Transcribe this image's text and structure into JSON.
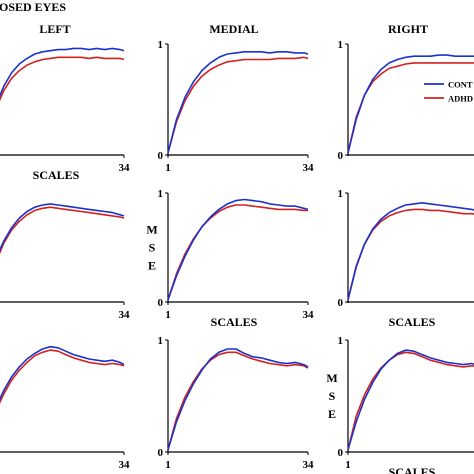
{
  "header": {
    "condition_label": "OSED EYES"
  },
  "columns": [
    {
      "title": "LEFT"
    },
    {
      "title": "MEDIAL"
    },
    {
      "title": "RIGHT"
    }
  ],
  "colors": {
    "control": "#1a33cc",
    "adhd": "#d42020",
    "axis": "#000000"
  },
  "chart_data": {
    "type": "line",
    "x_range": [
      1,
      34
    ],
    "y_range": [
      0,
      1
    ],
    "x_tick_labels": [
      "1",
      "34"
    ],
    "y_tick_labels": [
      "0",
      "1"
    ],
    "legend_entries": [
      "CONT",
      "ADHD"
    ],
    "panels": [
      {
        "row": 0,
        "col": 0,
        "xlabel": "SCALES",
        "ylabel": "",
        "tick_first": "",
        "tick_last": "34",
        "series": [
          {
            "name": "CONT",
            "x": [
              1,
              3,
              5,
              7,
              9,
              11,
              13,
              15,
              17,
              19,
              21,
              23,
              25,
              27,
              29,
              31,
              33,
              34
            ],
            "y": [
              0.45,
              0.62,
              0.74,
              0.82,
              0.87,
              0.91,
              0.93,
              0.94,
              0.95,
              0.95,
              0.96,
              0.96,
              0.95,
              0.96,
              0.95,
              0.96,
              0.95,
              0.94
            ]
          },
          {
            "name": "ADHD",
            "x": [
              1,
              3,
              5,
              7,
              9,
              11,
              13,
              15,
              17,
              19,
              21,
              23,
              25,
              27,
              29,
              31,
              33,
              34
            ],
            "y": [
              0.42,
              0.58,
              0.69,
              0.76,
              0.81,
              0.84,
              0.86,
              0.87,
              0.88,
              0.88,
              0.88,
              0.88,
              0.87,
              0.88,
              0.87,
              0.87,
              0.87,
              0.86
            ]
          }
        ]
      },
      {
        "row": 0,
        "col": 1,
        "xlabel": "",
        "ylabel": "",
        "tick_first": "1",
        "tick_last": "34",
        "series": [
          {
            "name": "CONT",
            "x": [
              1,
              3,
              5,
              7,
              9,
              11,
              13,
              15,
              17,
              19,
              21,
              23,
              25,
              27,
              29,
              31,
              33,
              34
            ],
            "y": [
              0.02,
              0.32,
              0.52,
              0.66,
              0.76,
              0.83,
              0.88,
              0.91,
              0.92,
              0.93,
              0.93,
              0.93,
              0.92,
              0.93,
              0.93,
              0.92,
              0.92,
              0.91
            ]
          },
          {
            "name": "ADHD",
            "x": [
              1,
              3,
              5,
              7,
              9,
              11,
              13,
              15,
              17,
              19,
              21,
              23,
              25,
              27,
              29,
              31,
              33,
              34
            ],
            "y": [
              0.02,
              0.3,
              0.49,
              0.62,
              0.71,
              0.77,
              0.81,
              0.84,
              0.85,
              0.86,
              0.86,
              0.86,
              0.86,
              0.87,
              0.87,
              0.87,
              0.88,
              0.87
            ]
          }
        ]
      },
      {
        "row": 0,
        "col": 2,
        "xlabel": "",
        "ylabel": "",
        "tick_first": "",
        "tick_last": "",
        "series": [
          {
            "name": "CONT",
            "x": [
              1,
              3,
              5,
              7,
              9,
              11,
              13,
              15,
              17,
              19,
              21,
              23,
              25,
              27,
              29,
              31,
              33,
              34
            ],
            "y": [
              0.02,
              0.32,
              0.54,
              0.68,
              0.77,
              0.83,
              0.86,
              0.88,
              0.89,
              0.89,
              0.89,
              0.9,
              0.9,
              0.89,
              0.89,
              0.89,
              0.89,
              0.89
            ]
          },
          {
            "name": "ADHD",
            "x": [
              1,
              3,
              5,
              7,
              9,
              11,
              13,
              15,
              17,
              19,
              21,
              23,
              25,
              27,
              29,
              31,
              33,
              34
            ],
            "y": [
              0.02,
              0.34,
              0.54,
              0.66,
              0.73,
              0.78,
              0.8,
              0.82,
              0.83,
              0.83,
              0.83,
              0.83,
              0.83,
              0.83,
              0.83,
              0.83,
              0.83,
              0.83
            ]
          }
        ]
      },
      {
        "row": 1,
        "col": 0,
        "xlabel": "",
        "ylabel": "",
        "tick_first": "",
        "tick_last": "34",
        "series": [
          {
            "name": "CONT",
            "x": [
              1,
              3,
              5,
              7,
              9,
              11,
              13,
              15,
              17,
              19,
              21,
              23,
              25,
              27,
              29,
              31,
              33,
              34
            ],
            "y": [
              0.4,
              0.56,
              0.68,
              0.77,
              0.83,
              0.87,
              0.89,
              0.9,
              0.89,
              0.88,
              0.87,
              0.86,
              0.85,
              0.84,
              0.83,
              0.82,
              0.8,
              0.79
            ]
          },
          {
            "name": "ADHD",
            "x": [
              1,
              3,
              5,
              7,
              9,
              11,
              13,
              15,
              17,
              19,
              21,
              23,
              25,
              27,
              29,
              31,
              33,
              34
            ],
            "y": [
              0.37,
              0.54,
              0.66,
              0.74,
              0.8,
              0.84,
              0.86,
              0.87,
              0.86,
              0.85,
              0.84,
              0.83,
              0.82,
              0.81,
              0.8,
              0.79,
              0.78,
              0.77
            ]
          }
        ]
      },
      {
        "row": 1,
        "col": 1,
        "xlabel": "SCALES",
        "ylabel": "M S E",
        "tick_first": "1",
        "tick_last": "34",
        "series": [
          {
            "name": "CONT",
            "x": [
              1,
              3,
              5,
              7,
              9,
              11,
              13,
              15,
              17,
              19,
              21,
              23,
              25,
              27,
              29,
              31,
              33,
              34
            ],
            "y": [
              0.02,
              0.24,
              0.42,
              0.57,
              0.69,
              0.78,
              0.85,
              0.9,
              0.93,
              0.94,
              0.93,
              0.92,
              0.9,
              0.89,
              0.88,
              0.88,
              0.86,
              0.85
            ]
          },
          {
            "name": "ADHD",
            "x": [
              1,
              3,
              5,
              7,
              9,
              11,
              13,
              15,
              17,
              19,
              21,
              23,
              25,
              27,
              29,
              31,
              33,
              34
            ],
            "y": [
              0.02,
              0.26,
              0.44,
              0.58,
              0.69,
              0.77,
              0.83,
              0.87,
              0.89,
              0.89,
              0.88,
              0.87,
              0.86,
              0.85,
              0.85,
              0.85,
              0.84,
              0.84
            ]
          }
        ]
      },
      {
        "row": 1,
        "col": 2,
        "xlabel": "SCALES",
        "ylabel": "",
        "tick_first": "",
        "tick_last": "",
        "series": [
          {
            "name": "CONT",
            "x": [
              1,
              3,
              5,
              7,
              9,
              11,
              13,
              15,
              17,
              19,
              21,
              23,
              25,
              27,
              29,
              31,
              33,
              34
            ],
            "y": [
              0.02,
              0.32,
              0.53,
              0.67,
              0.76,
              0.82,
              0.86,
              0.89,
              0.9,
              0.91,
              0.9,
              0.89,
              0.88,
              0.87,
              0.86,
              0.85,
              0.83,
              0.82
            ]
          },
          {
            "name": "ADHD",
            "x": [
              1,
              3,
              5,
              7,
              9,
              11,
              13,
              15,
              17,
              19,
              21,
              23,
              25,
              27,
              29,
              31,
              33,
              34
            ],
            "y": [
              0.02,
              0.33,
              0.53,
              0.66,
              0.74,
              0.79,
              0.82,
              0.84,
              0.85,
              0.85,
              0.84,
              0.84,
              0.83,
              0.82,
              0.81,
              0.81,
              0.8,
              0.79
            ]
          }
        ]
      },
      {
        "row": 2,
        "col": 0,
        "xlabel": "",
        "ylabel": "",
        "tick_first": "",
        "tick_last": "34",
        "series": [
          {
            "name": "CONT",
            "x": [
              1,
              3,
              5,
              7,
              9,
              11,
              13,
              15,
              17,
              19,
              21,
              23,
              25,
              27,
              29,
              31,
              33,
              34
            ],
            "y": [
              0.4,
              0.55,
              0.67,
              0.76,
              0.83,
              0.88,
              0.92,
              0.94,
              0.93,
              0.9,
              0.87,
              0.85,
              0.83,
              0.82,
              0.81,
              0.82,
              0.8,
              0.78
            ]
          },
          {
            "name": "ADHD",
            "x": [
              1,
              3,
              5,
              7,
              9,
              11,
              13,
              15,
              17,
              19,
              21,
              23,
              25,
              27,
              29,
              31,
              33,
              34
            ],
            "y": [
              0.37,
              0.52,
              0.64,
              0.73,
              0.8,
              0.86,
              0.89,
              0.91,
              0.9,
              0.87,
              0.84,
              0.82,
              0.8,
              0.79,
              0.78,
              0.79,
              0.78,
              0.77
            ]
          }
        ]
      },
      {
        "row": 2,
        "col": 1,
        "xlabel": "",
        "ylabel": "",
        "tick_first": "1",
        "tick_last": "34",
        "series": [
          {
            "name": "CONT",
            "x": [
              1,
              3,
              5,
              7,
              9,
              11,
              13,
              15,
              17,
              19,
              21,
              23,
              25,
              27,
              29,
              31,
              33,
              34
            ],
            "y": [
              0.02,
              0.27,
              0.46,
              0.61,
              0.73,
              0.83,
              0.89,
              0.92,
              0.92,
              0.88,
              0.85,
              0.84,
              0.82,
              0.8,
              0.79,
              0.8,
              0.78,
              0.76
            ]
          },
          {
            "name": "ADHD",
            "x": [
              1,
              3,
              5,
              7,
              9,
              11,
              13,
              15,
              17,
              19,
              21,
              23,
              25,
              27,
              29,
              31,
              33,
              34
            ],
            "y": [
              0.02,
              0.3,
              0.49,
              0.63,
              0.74,
              0.82,
              0.87,
              0.89,
              0.89,
              0.86,
              0.83,
              0.81,
              0.79,
              0.78,
              0.77,
              0.78,
              0.77,
              0.75
            ]
          }
        ]
      },
      {
        "row": 2,
        "col": 2,
        "xlabel": "SCALES",
        "ylabel": "M S E",
        "tick_first": "1",
        "tick_last": "",
        "series": [
          {
            "name": "CONT",
            "x": [
              1,
              3,
              5,
              7,
              9,
              11,
              13,
              15,
              17,
              19,
              21,
              23,
              25,
              27,
              29,
              31,
              33,
              34
            ],
            "y": [
              0.02,
              0.27,
              0.47,
              0.62,
              0.74,
              0.82,
              0.88,
              0.91,
              0.9,
              0.87,
              0.84,
              0.82,
              0.8,
              0.79,
              0.78,
              0.79,
              0.77,
              0.75
            ]
          },
          {
            "name": "ADHD",
            "x": [
              1,
              3,
              5,
              7,
              9,
              11,
              13,
              15,
              17,
              19,
              21,
              23,
              25,
              27,
              29,
              31,
              33,
              34
            ],
            "y": [
              0.02,
              0.32,
              0.51,
              0.65,
              0.75,
              0.82,
              0.87,
              0.89,
              0.88,
              0.85,
              0.82,
              0.8,
              0.78,
              0.77,
              0.76,
              0.77,
              0.76,
              0.74
            ]
          }
        ]
      }
    ]
  }
}
